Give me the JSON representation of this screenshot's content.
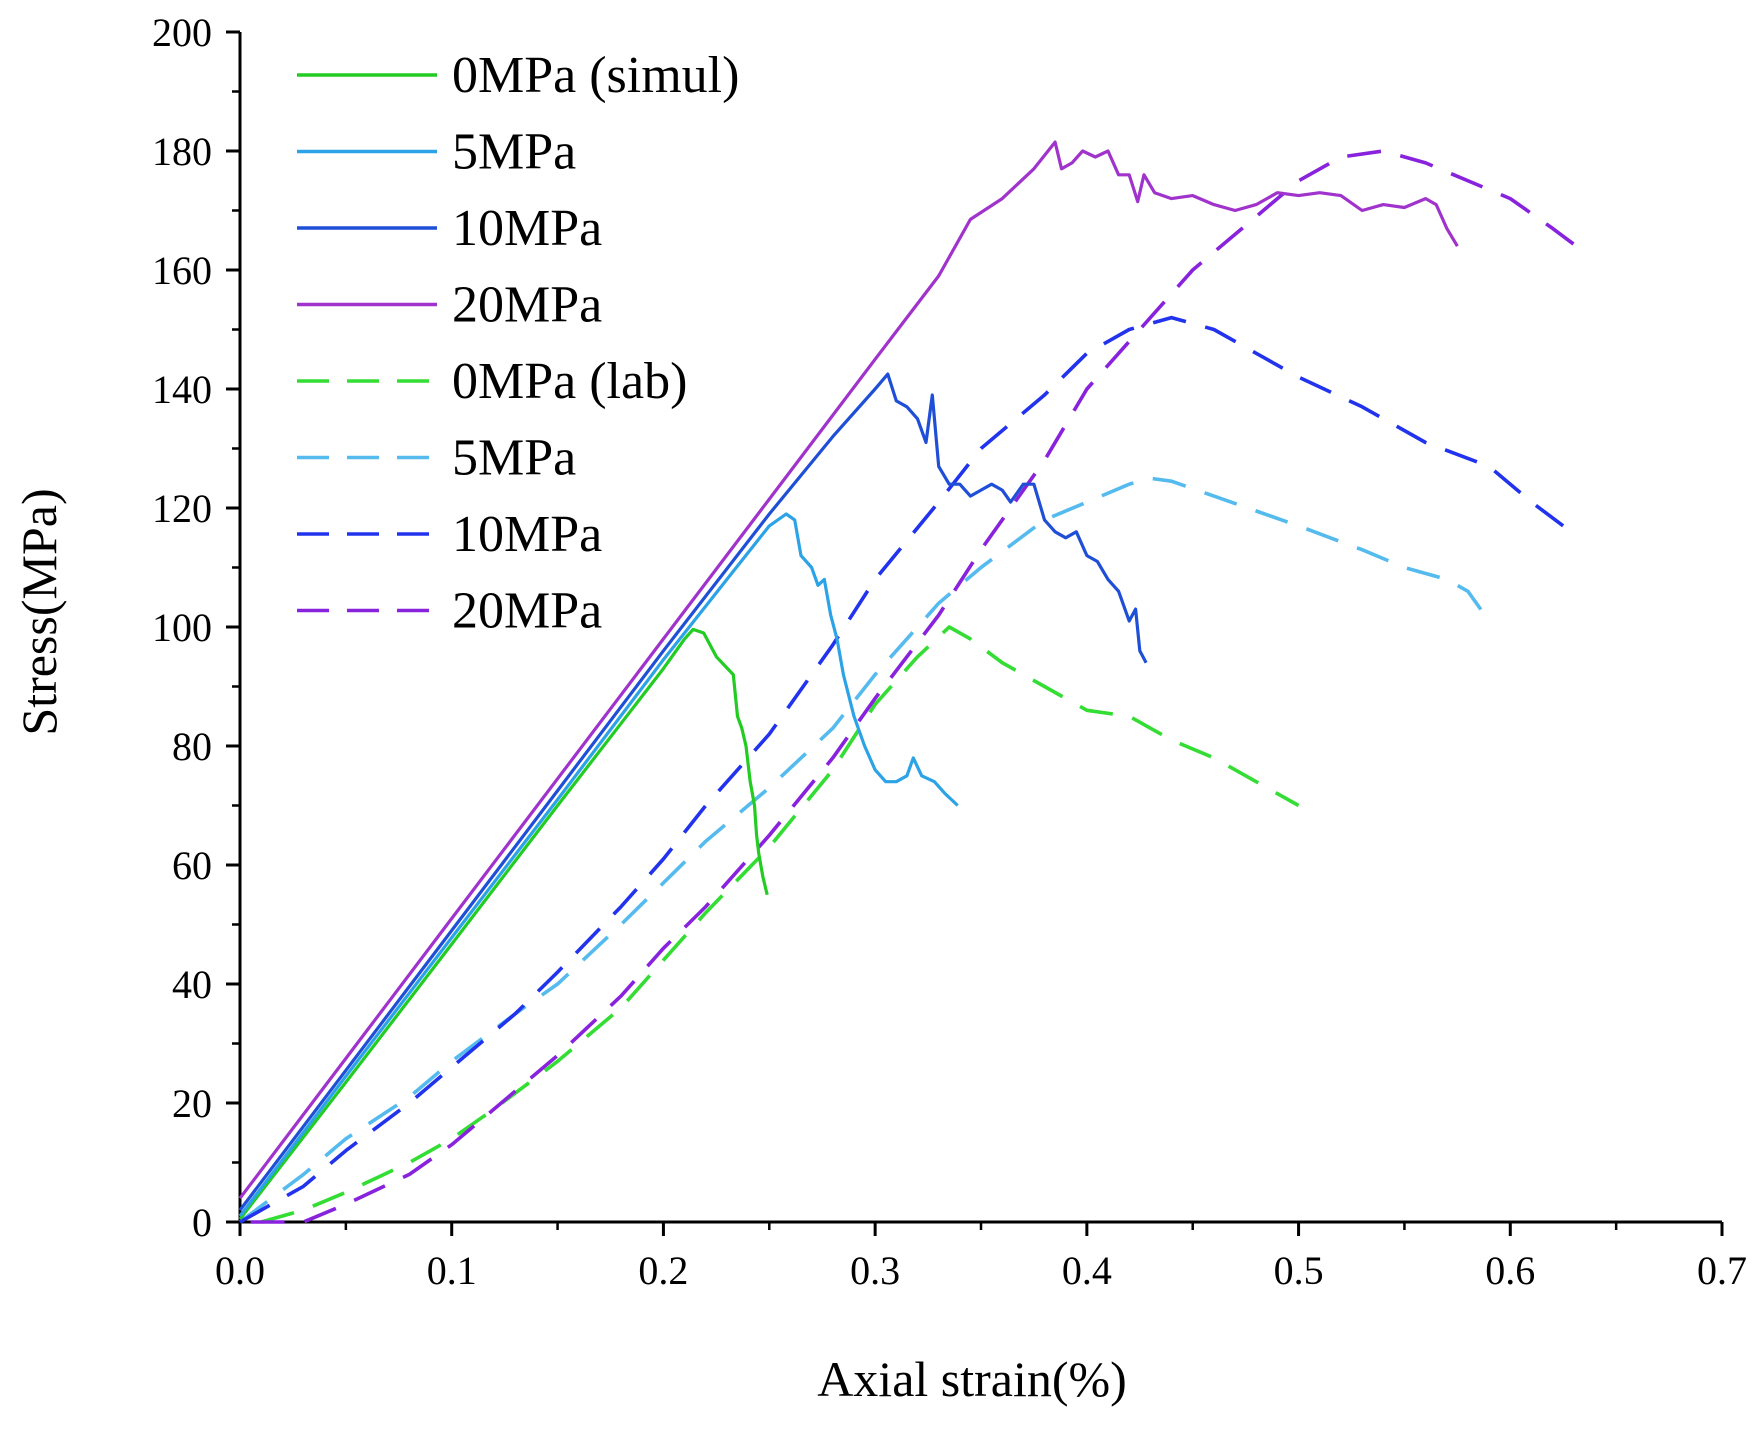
{
  "chart_data": {
    "type": "line",
    "title": "",
    "xlabel": "Axial strain(%)",
    "ylabel": "Stress(MPa)",
    "xlim": [
      0,
      0.7
    ],
    "ylim": [
      0,
      200
    ],
    "x_ticks": [
      0.0,
      0.1,
      0.2,
      0.3,
      0.4,
      0.5,
      0.6,
      0.7
    ],
    "x_tick_labels": [
      "0.0",
      "0.1",
      "0.2",
      "0.3",
      "0.4",
      "0.5",
      "0.6",
      "0.7"
    ],
    "y_ticks": [
      0,
      20,
      40,
      60,
      80,
      100,
      120,
      140,
      160,
      180,
      200
    ],
    "y_tick_labels": [
      "0",
      "20",
      "40",
      "60",
      "80",
      "100",
      "120",
      "140",
      "160",
      "180",
      "200"
    ],
    "grid": false,
    "legend_position": "top-left",
    "series": [
      {
        "name": "0MPa (simul)",
        "color": "#22cc22",
        "style": "solid",
        "points": [
          [
            0.0,
            0.5
          ],
          [
            0.05,
            23.5
          ],
          [
            0.1,
            46.7
          ],
          [
            0.15,
            70
          ],
          [
            0.2,
            93
          ],
          [
            0.21,
            98
          ],
          [
            0.214,
            99.6
          ],
          [
            0.219,
            99
          ],
          [
            0.225,
            95
          ],
          [
            0.233,
            92
          ],
          [
            0.235,
            85
          ],
          [
            0.237,
            83
          ],
          [
            0.239,
            80
          ],
          [
            0.241,
            74
          ],
          [
            0.243,
            70
          ],
          [
            0.244,
            65
          ],
          [
            0.245,
            62
          ],
          [
            0.247,
            58
          ],
          [
            0.249,
            55
          ]
        ]
      },
      {
        "name": "5MPa",
        "color": "#2ba3e6",
        "style": "solid",
        "points": [
          [
            0.0,
            1
          ],
          [
            0.05,
            24.5
          ],
          [
            0.1,
            47.8
          ],
          [
            0.15,
            71
          ],
          [
            0.2,
            94.5
          ],
          [
            0.23,
            108
          ],
          [
            0.25,
            117
          ],
          [
            0.258,
            119
          ],
          [
            0.262,
            118
          ],
          [
            0.265,
            112
          ],
          [
            0.27,
            110
          ],
          [
            0.273,
            107
          ],
          [
            0.276,
            108
          ],
          [
            0.279,
            102
          ],
          [
            0.282,
            98
          ],
          [
            0.285,
            92
          ],
          [
            0.29,
            85
          ],
          [
            0.295,
            80
          ],
          [
            0.3,
            76
          ],
          [
            0.305,
            74
          ],
          [
            0.31,
            74
          ],
          [
            0.315,
            75
          ],
          [
            0.318,
            78
          ],
          [
            0.322,
            75
          ],
          [
            0.328,
            74
          ],
          [
            0.333,
            72
          ],
          [
            0.339,
            70
          ]
        ]
      },
      {
        "name": "10MPa",
        "color": "#1f4fd6",
        "style": "solid",
        "points": [
          [
            0.0,
            2
          ],
          [
            0.05,
            25.5
          ],
          [
            0.1,
            49
          ],
          [
            0.15,
            72.5
          ],
          [
            0.2,
            96
          ],
          [
            0.25,
            119
          ],
          [
            0.28,
            132
          ],
          [
            0.3,
            140
          ],
          [
            0.306,
            142.5
          ],
          [
            0.31,
            138
          ],
          [
            0.315,
            137
          ],
          [
            0.32,
            135
          ],
          [
            0.324,
            131
          ],
          [
            0.327,
            139
          ],
          [
            0.33,
            127
          ],
          [
            0.335,
            124
          ],
          [
            0.34,
            124
          ],
          [
            0.345,
            122
          ],
          [
            0.35,
            123
          ],
          [
            0.355,
            124
          ],
          [
            0.36,
            123
          ],
          [
            0.364,
            121
          ],
          [
            0.37,
            124
          ],
          [
            0.375,
            124
          ],
          [
            0.38,
            118
          ],
          [
            0.385,
            116
          ],
          [
            0.39,
            115
          ],
          [
            0.395,
            116
          ],
          [
            0.4,
            112
          ],
          [
            0.405,
            111
          ],
          [
            0.41,
            108
          ],
          [
            0.415,
            106
          ],
          [
            0.42,
            101
          ],
          [
            0.423,
            103
          ],
          [
            0.425,
            96
          ],
          [
            0.428,
            94
          ]
        ]
      },
      {
        "name": "20MPa",
        "color": "#a033cc",
        "style": "solid",
        "points": [
          [
            0.0,
            4
          ],
          [
            0.05,
            27.5
          ],
          [
            0.1,
            51
          ],
          [
            0.15,
            74.5
          ],
          [
            0.2,
            98
          ],
          [
            0.25,
            121.5
          ],
          [
            0.3,
            145
          ],
          [
            0.33,
            159
          ],
          [
            0.345,
            168.5
          ],
          [
            0.36,
            172
          ],
          [
            0.375,
            177
          ],
          [
            0.385,
            181.5
          ],
          [
            0.388,
            177
          ],
          [
            0.393,
            178
          ],
          [
            0.398,
            180
          ],
          [
            0.404,
            179
          ],
          [
            0.41,
            180
          ],
          [
            0.415,
            176
          ],
          [
            0.42,
            176
          ],
          [
            0.424,
            171.5
          ],
          [
            0.427,
            176
          ],
          [
            0.432,
            173
          ],
          [
            0.44,
            172
          ],
          [
            0.45,
            172.5
          ],
          [
            0.46,
            171
          ],
          [
            0.47,
            170
          ],
          [
            0.48,
            171
          ],
          [
            0.49,
            173
          ],
          [
            0.5,
            172.5
          ],
          [
            0.51,
            173
          ],
          [
            0.52,
            172.5
          ],
          [
            0.53,
            170
          ],
          [
            0.54,
            171
          ],
          [
            0.55,
            170.5
          ],
          [
            0.56,
            172
          ],
          [
            0.565,
            171
          ],
          [
            0.57,
            167
          ],
          [
            0.575,
            164
          ]
        ]
      },
      {
        "name": "0MPa (lab)",
        "color": "#33dd33",
        "style": "dashed",
        "points": [
          [
            0.01,
            0
          ],
          [
            0.03,
            2
          ],
          [
            0.05,
            5
          ],
          [
            0.08,
            10
          ],
          [
            0.1,
            14
          ],
          [
            0.12,
            19
          ],
          [
            0.15,
            27
          ],
          [
            0.18,
            36
          ],
          [
            0.2,
            44
          ],
          [
            0.22,
            52
          ],
          [
            0.25,
            63
          ],
          [
            0.28,
            76
          ],
          [
            0.3,
            87
          ],
          [
            0.32,
            95
          ],
          [
            0.335,
            100
          ],
          [
            0.345,
            98
          ],
          [
            0.36,
            94
          ],
          [
            0.38,
            90
          ],
          [
            0.4,
            86
          ],
          [
            0.42,
            85
          ],
          [
            0.44,
            81
          ],
          [
            0.46,
            78
          ],
          [
            0.48,
            74
          ],
          [
            0.5,
            70
          ]
        ]
      },
      {
        "name": "5MPa",
        "color": "#55bbee",
        "style": "dashed",
        "points": [
          [
            0.0,
            0
          ],
          [
            0.03,
            8
          ],
          [
            0.05,
            14
          ],
          [
            0.08,
            21
          ],
          [
            0.1,
            27
          ],
          [
            0.13,
            35
          ],
          [
            0.15,
            40
          ],
          [
            0.18,
            50
          ],
          [
            0.2,
            57
          ],
          [
            0.22,
            64
          ],
          [
            0.25,
            73
          ],
          [
            0.28,
            83
          ],
          [
            0.3,
            92
          ],
          [
            0.33,
            104
          ],
          [
            0.35,
            110
          ],
          [
            0.38,
            118
          ],
          [
            0.4,
            121
          ],
          [
            0.42,
            124
          ],
          [
            0.43,
            125
          ],
          [
            0.44,
            124.5
          ],
          [
            0.46,
            122
          ],
          [
            0.5,
            117
          ],
          [
            0.53,
            113
          ],
          [
            0.55,
            110
          ],
          [
            0.57,
            108
          ],
          [
            0.58,
            106
          ],
          [
            0.59,
            101
          ]
        ]
      },
      {
        "name": "10MPa",
        "color": "#2233ee",
        "style": "dashed",
        "points": [
          [
            0.0,
            0
          ],
          [
            0.03,
            6
          ],
          [
            0.05,
            12
          ],
          [
            0.08,
            20
          ],
          [
            0.1,
            26
          ],
          [
            0.13,
            35
          ],
          [
            0.15,
            42
          ],
          [
            0.18,
            53
          ],
          [
            0.2,
            61
          ],
          [
            0.22,
            70
          ],
          [
            0.25,
            82
          ],
          [
            0.28,
            97
          ],
          [
            0.3,
            108
          ],
          [
            0.33,
            121
          ],
          [
            0.35,
            130
          ],
          [
            0.38,
            139
          ],
          [
            0.4,
            146
          ],
          [
            0.42,
            150
          ],
          [
            0.44,
            152
          ],
          [
            0.46,
            150
          ],
          [
            0.5,
            142
          ],
          [
            0.53,
            137
          ],
          [
            0.56,
            131
          ],
          [
            0.59,
            127
          ],
          [
            0.61,
            121
          ],
          [
            0.625,
            117
          ]
        ]
      },
      {
        "name": "20MPa",
        "color": "#8822dd",
        "style": "dashed",
        "points": [
          [
            0.005,
            0
          ],
          [
            0.03,
            0
          ],
          [
            0.05,
            3
          ],
          [
            0.08,
            8
          ],
          [
            0.1,
            13
          ],
          [
            0.12,
            19
          ],
          [
            0.15,
            28
          ],
          [
            0.18,
            38
          ],
          [
            0.2,
            46
          ],
          [
            0.22,
            53
          ],
          [
            0.25,
            65
          ],
          [
            0.28,
            78
          ],
          [
            0.3,
            88
          ],
          [
            0.33,
            102
          ],
          [
            0.35,
            113
          ],
          [
            0.38,
            128
          ],
          [
            0.4,
            140
          ],
          [
            0.43,
            152
          ],
          [
            0.45,
            160
          ],
          [
            0.48,
            169
          ],
          [
            0.5,
            175
          ],
          [
            0.52,
            179
          ],
          [
            0.54,
            180
          ],
          [
            0.56,
            178
          ],
          [
            0.6,
            172
          ],
          [
            0.62,
            167
          ],
          [
            0.635,
            163
          ]
        ]
      }
    ]
  }
}
